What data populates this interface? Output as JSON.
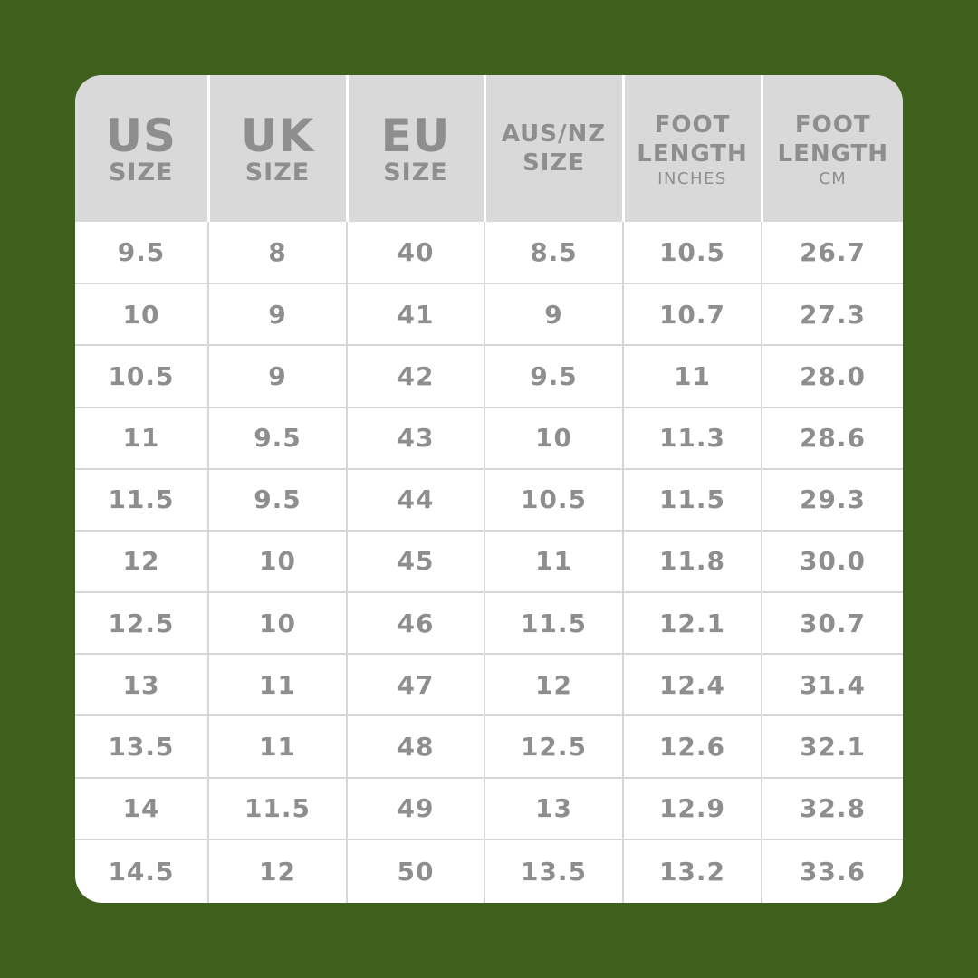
{
  "colors": {
    "background": "#3f601d",
    "card": "#ffffff",
    "header_bg": "#d9d9d9",
    "text": "#8e8e8e",
    "grid_line": "#d7d7d7"
  },
  "header": {
    "us": {
      "top": "US",
      "bottom": "SIZE"
    },
    "uk": {
      "top": "UK",
      "bottom": "SIZE"
    },
    "eu": {
      "top": "EU",
      "bottom": "SIZE"
    },
    "aus": {
      "top": "AUS/NZ",
      "bottom": "SIZE"
    },
    "inches": {
      "line1": "FOOT",
      "line2": "LENGTH",
      "unit": "INCHES"
    },
    "cm": {
      "line1": "FOOT",
      "line2": "LENGTH",
      "unit": "CM"
    }
  },
  "rows": [
    [
      "9.5",
      "8",
      "40",
      "8.5",
      "10.5",
      "26.7"
    ],
    [
      "10",
      "9",
      "41",
      "9",
      "10.7",
      "27.3"
    ],
    [
      "10.5",
      "9",
      "42",
      "9.5",
      "11",
      "28.0"
    ],
    [
      "11",
      "9.5",
      "43",
      "10",
      "11.3",
      "28.6"
    ],
    [
      "11.5",
      "9.5",
      "44",
      "10.5",
      "11.5",
      "29.3"
    ],
    [
      "12",
      "10",
      "45",
      "11",
      "11.8",
      "30.0"
    ],
    [
      "12.5",
      "10",
      "46",
      "11.5",
      "12.1",
      "30.7"
    ],
    [
      "13",
      "11",
      "47",
      "12",
      "12.4",
      "31.4"
    ],
    [
      "13.5",
      "11",
      "48",
      "12.5",
      "12.6",
      "32.1"
    ],
    [
      "14",
      "11.5",
      "49",
      "13",
      "12.9",
      "32.8"
    ],
    [
      "14.5",
      "12",
      "50",
      "13.5",
      "13.2",
      "33.6"
    ]
  ]
}
